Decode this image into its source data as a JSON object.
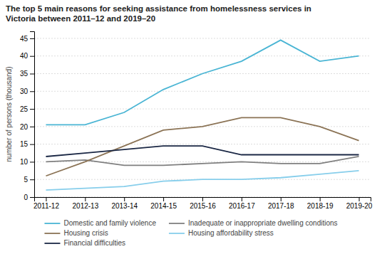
{
  "chart_data": {
    "type": "line",
    "title": "The top 5 main reasons for seeking assistance from homelessness services in\nVictoria between 2011–12 and 2019–20",
    "y_label": "number of persons (thousand)",
    "categories": [
      "2011-12",
      "2012-13",
      "2013-14",
      "2014-15",
      "2015-16",
      "2016-17",
      "2017-18",
      "2018-19",
      "2019-20"
    ],
    "series": [
      {
        "name": "Domestic and family violence",
        "color": "#4ab5d4",
        "line_style": "solid",
        "values": [
          20.5,
          20.5,
          24.0,
          30.5,
          35.0,
          38.5,
          44.5,
          38.5,
          40.0
        ]
      },
      {
        "name": "Inadequate or inappropriate dwelling conditions",
        "color": "#808080",
        "line_style": "solid",
        "values": [
          10.0,
          10.5,
          9.0,
          9.0,
          9.5,
          10.0,
          9.5,
          9.5,
          11.5
        ]
      },
      {
        "name": "Housing crisis",
        "color": "#8b7355",
        "line_style": "solid",
        "values": [
          6.0,
          10.0,
          14.5,
          19.0,
          20.0,
          22.5,
          22.5,
          20.0,
          16.0
        ]
      },
      {
        "name": "Housing affordability stress",
        "color": "#87ceeb",
        "line_style": "solid",
        "values": [
          2.0,
          2.5,
          3.0,
          4.5,
          5.0,
          5.0,
          5.5,
          6.5,
          7.5
        ]
      },
      {
        "name": "Financial difficulties",
        "color": "#1a2744",
        "line_style": "solid",
        "values": [
          11.5,
          12.5,
          13.5,
          14.5,
          14.5,
          12.0,
          12.0,
          12.0,
          12.0
        ]
      }
    ],
    "ylim": [
      0,
      47
    ],
    "yticks": [
      0,
      5,
      10,
      15,
      20,
      25,
      30,
      35,
      40,
      45
    ],
    "grid": true,
    "legend": "bottom"
  }
}
